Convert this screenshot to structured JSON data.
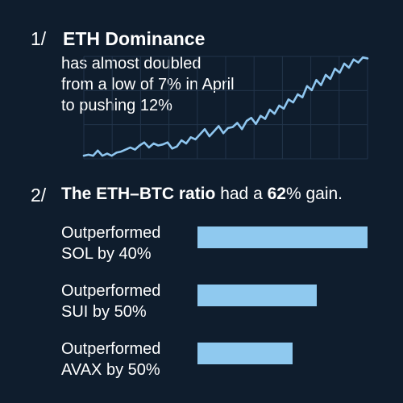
{
  "colors": {
    "background": "#0f1d2d",
    "line": "#8fc6ef",
    "grid": "#22344a",
    "bar": "#8fc9ef"
  },
  "section1": {
    "number": "1/",
    "title": "ETH Dominance",
    "description_lines": [
      "has almost doubled",
      "from a low of 7% in April",
      "to pushing 12%"
    ]
  },
  "section2": {
    "number": "2/",
    "ratio_bold": "The ETH–BTC ratio",
    "ratio_mid": " had a ",
    "ratio_value": "62",
    "ratio_end": "% gain."
  },
  "chart_data": [
    {
      "type": "line",
      "title": "",
      "xlabel": "",
      "ylabel": "",
      "grid": true,
      "ylim": [
        0,
        100
      ],
      "series": [
        {
          "values": [
            3,
            4,
            3,
            8,
            3,
            5,
            3,
            6,
            7,
            9,
            11,
            9,
            13,
            16,
            11,
            15,
            13,
            14,
            16,
            10,
            12,
            18,
            15,
            21,
            19,
            24,
            29,
            22,
            27,
            32,
            25,
            30,
            31,
            35,
            29,
            37,
            40,
            34,
            42,
            39,
            48,
            44,
            52,
            49,
            58,
            55,
            63,
            60,
            71,
            67,
            77,
            72,
            82,
            78,
            88,
            84,
            93,
            89,
            97,
            94,
            99,
            98
          ]
        }
      ]
    },
    {
      "type": "bar",
      "orientation": "horizontal",
      "title": "",
      "categories": [
        [
          "Outperformed",
          "SOL by 40%"
        ],
        [
          "Outperformed",
          "SUI by 50%"
        ],
        [
          "Outperformed",
          "AVAX by 50%"
        ]
      ],
      "values": [
        100,
        70,
        56
      ],
      "xlim": [
        0,
        100
      ]
    }
  ]
}
